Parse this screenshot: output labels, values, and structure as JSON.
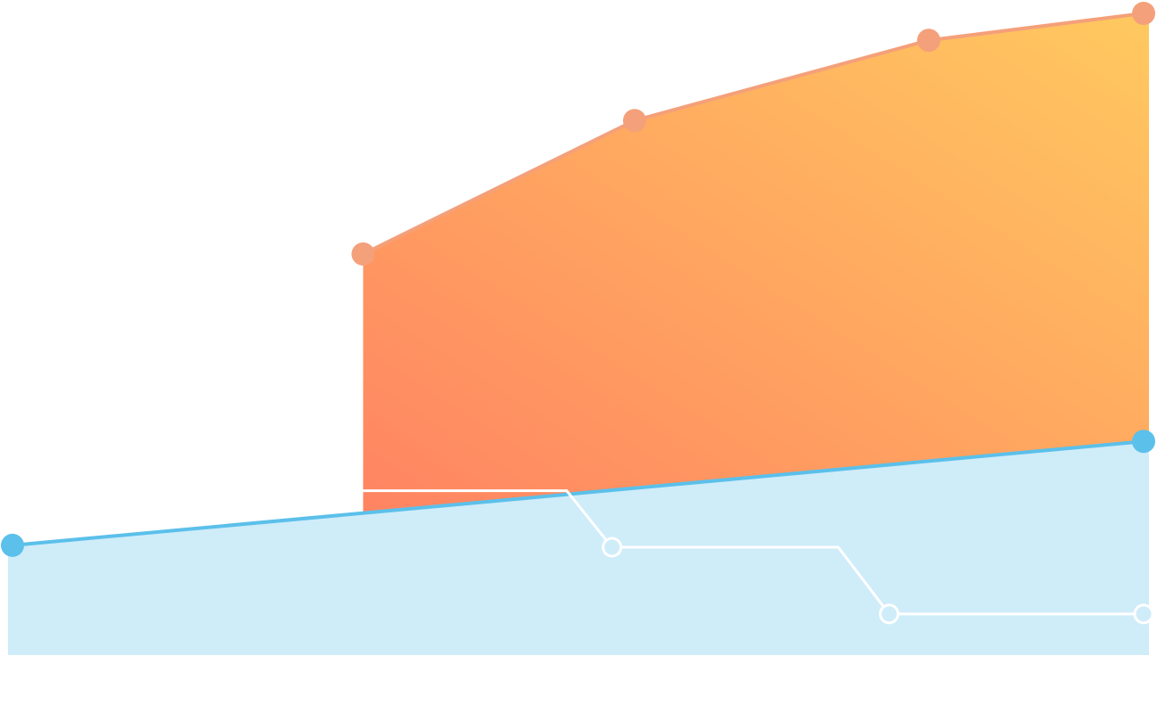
{
  "chart_data": {
    "type": "area",
    "title": "",
    "xlabel": "",
    "ylabel": "",
    "xlim": [
      0,
      100
    ],
    "ylim": [
      0,
      100
    ],
    "grid": false,
    "series": [
      {
        "color": "#5bc0ea",
        "fill": "#cfecf9",
        "points": [
          [
            0,
            17.1
          ],
          [
            100,
            33.3
          ]
        ]
      },
      {
        "color": "#f4a07a",
        "fill_gradient": [
          "#ff8462",
          "#ffc95f"
        ],
        "baseline": "series-1",
        "points": [
          [
            31,
            62.5
          ],
          [
            55,
            83.3
          ],
          [
            81,
            95.8
          ],
          [
            100,
            100
          ]
        ]
      },
      {
        "color": "#ffffff",
        "marker": "hollow-circle",
        "step": true,
        "points": [
          [
            31,
            25.6
          ],
          [
            49,
            25.6
          ],
          [
            53,
            16.8
          ],
          [
            73,
            16.8
          ],
          [
            77.5,
            6.4
          ],
          [
            100,
            6.4
          ]
        ],
        "markers_at": [
          [
            53,
            16.8
          ],
          [
            77.5,
            6.4
          ],
          [
            100,
            6.4
          ]
        ]
      }
    ]
  }
}
